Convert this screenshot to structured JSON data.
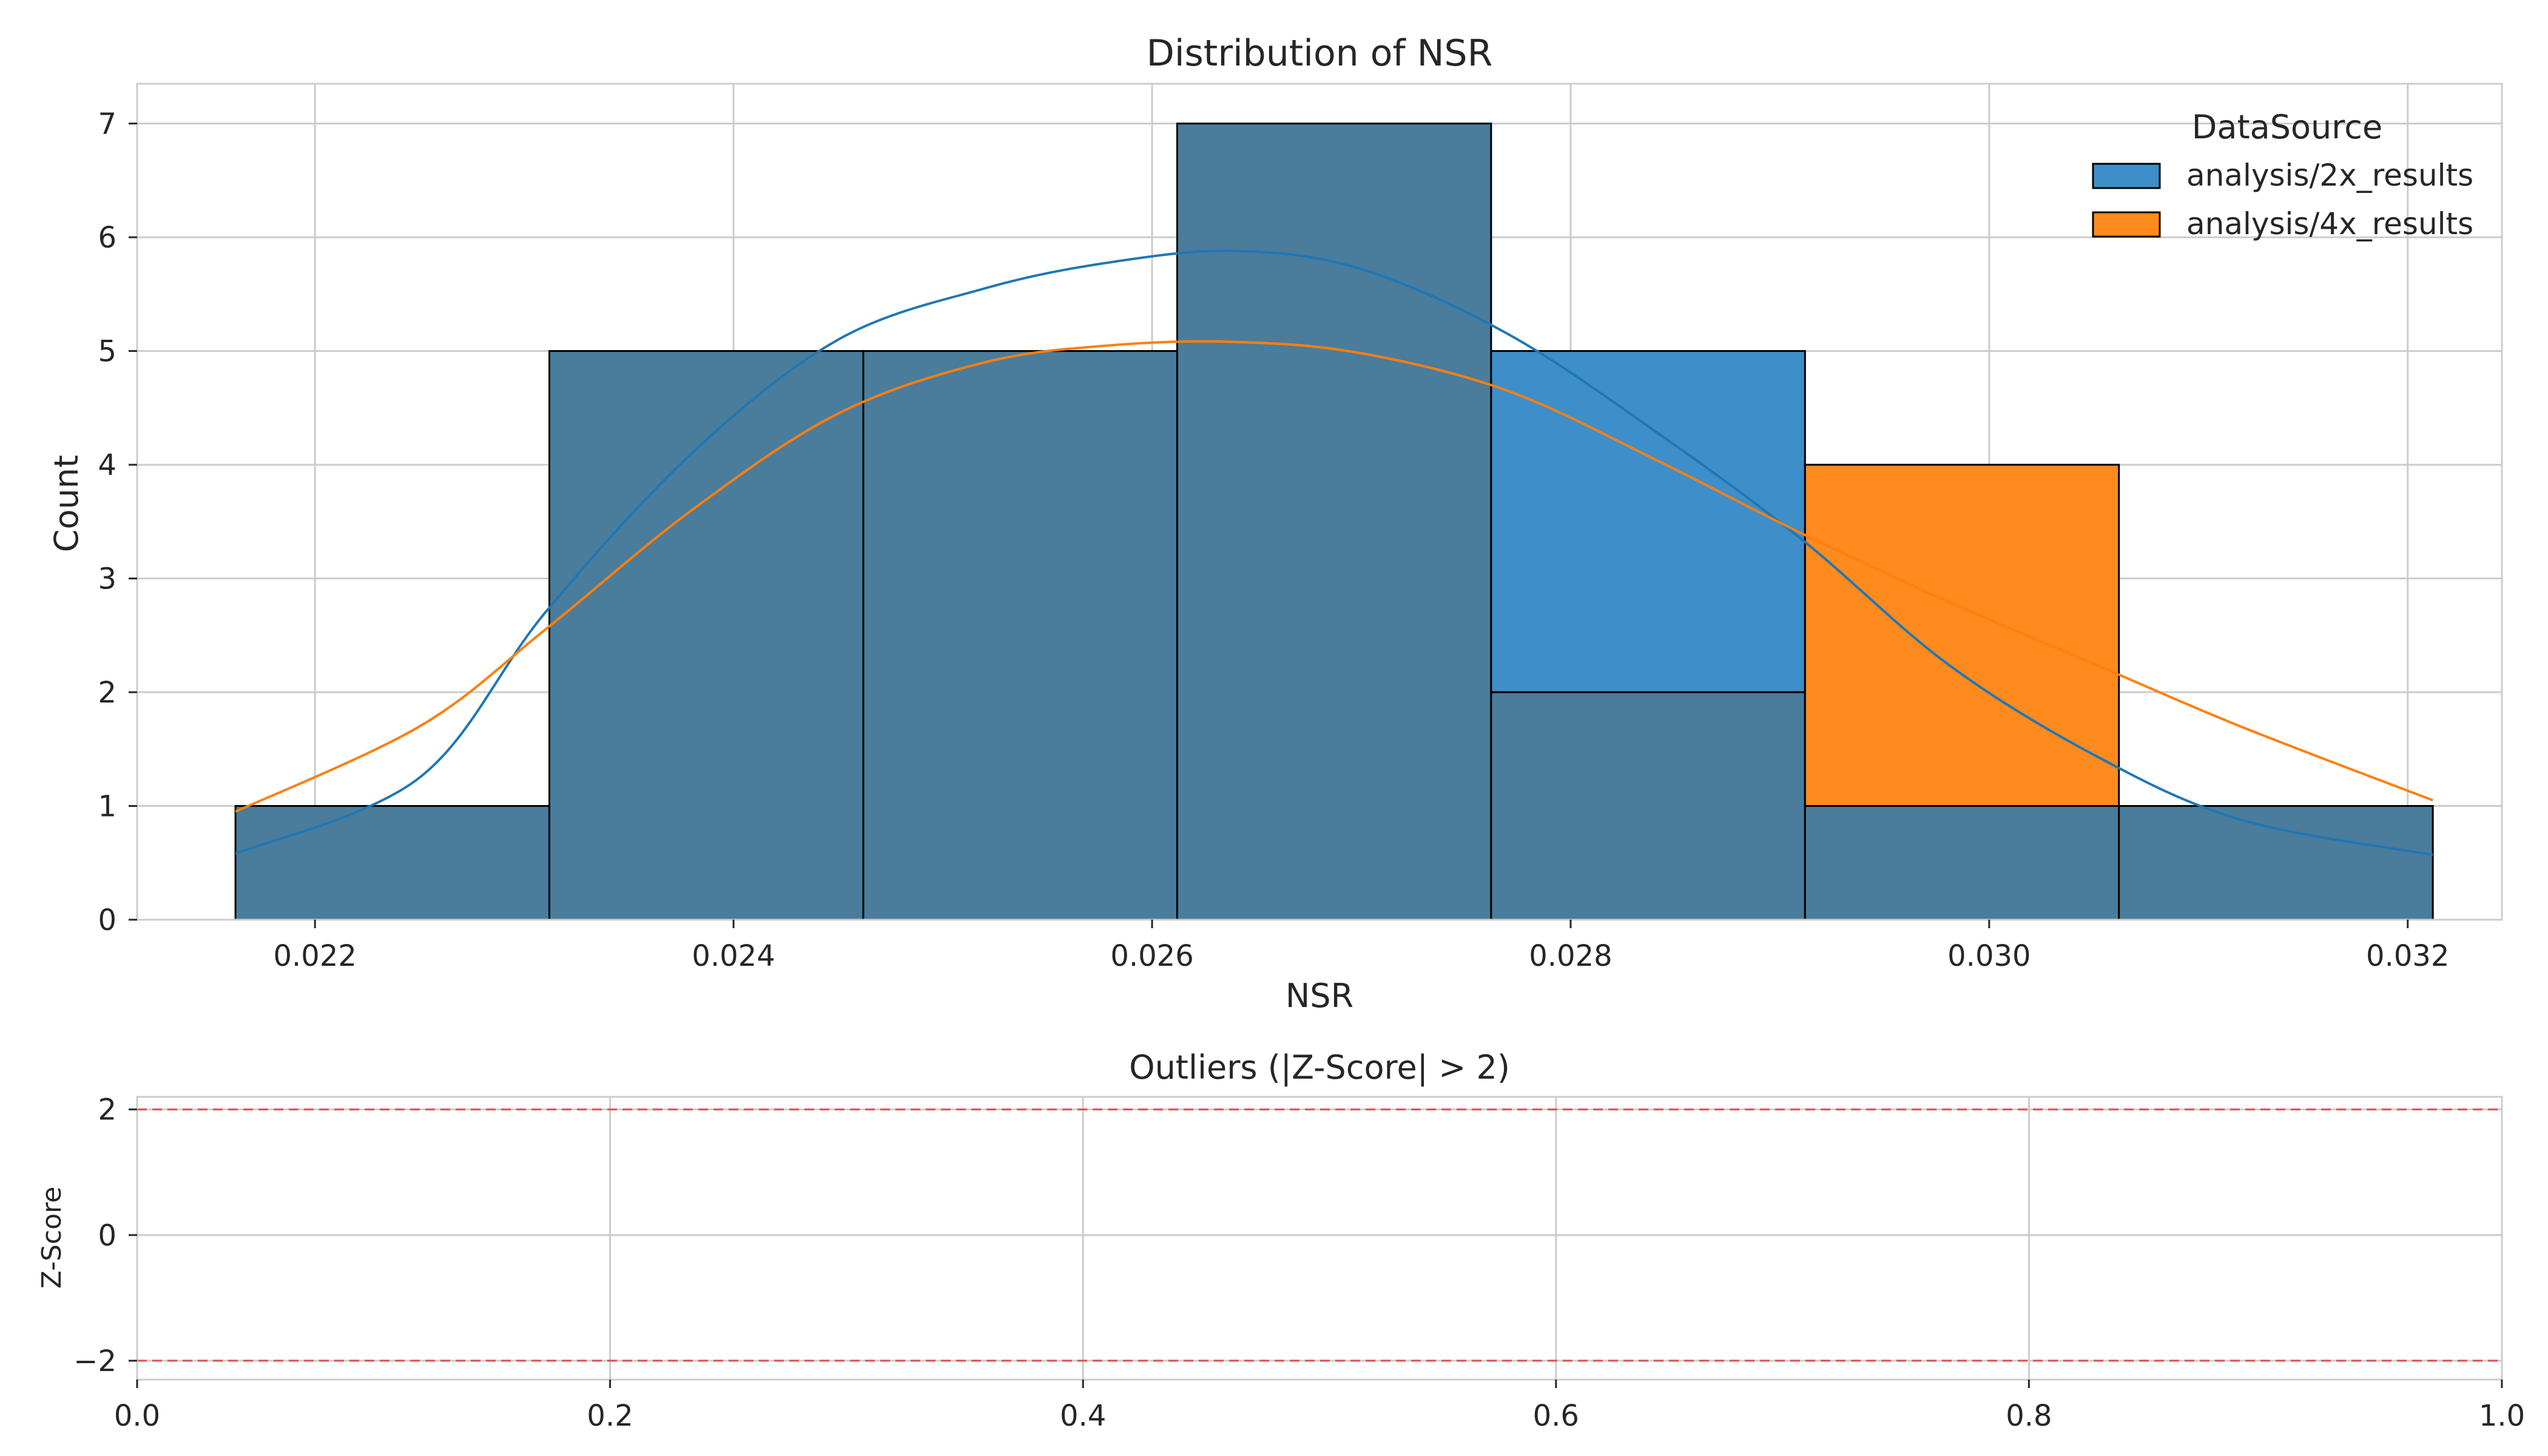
{
  "colors": {
    "series_2x": "#3d8ec9",
    "series_4x": "#ff8a1e",
    "overlap": "#4a7c9c",
    "kde_2x": "#1f77b4",
    "kde_4x": "#ff7f0e",
    "threshold": "#e05050",
    "grid": "#cccccc",
    "edge": "#000000"
  },
  "chart_data": [
    {
      "type": "bar",
      "title": "Distribution of NSR",
      "xlabel": "NSR",
      "ylabel": "Count",
      "xlim": [
        0.02115,
        0.03245
      ],
      "ylim": [
        0,
        7.35
      ],
      "xticks": [
        0.022,
        0.024,
        0.026,
        0.028,
        0.03,
        0.032
      ],
      "xtick_labels": [
        "0.022",
        "0.024",
        "0.026",
        "0.028",
        "0.030",
        "0.032"
      ],
      "yticks": [
        0,
        1,
        2,
        3,
        4,
        5,
        6,
        7
      ],
      "ytick_labels": [
        "0",
        "1",
        "2",
        "3",
        "4",
        "5",
        "6",
        "7"
      ],
      "bin_edges": [
        0.02162,
        0.02312,
        0.02462,
        0.02612,
        0.02762,
        0.02912,
        0.03062,
        0.03212
      ],
      "grid": true,
      "legend": {
        "title": "DataSource",
        "placement": "top-right"
      },
      "series": [
        {
          "name": "analysis/2x_results",
          "values": [
            1,
            5,
            5,
            7,
            5,
            1,
            1
          ],
          "kde": {
            "x": [
              0.02162,
              0.0225,
              0.0231,
              0.0238,
              0.0245,
              0.0252,
              0.0258,
              0.0264,
              0.027,
              0.0277,
              0.0284,
              0.0291,
              0.0298,
              0.0305,
              0.0312,
              0.03212
            ],
            "y": [
              0.58,
              1.25,
              2.7,
              4.1,
              5.1,
              5.55,
              5.78,
              5.88,
              5.72,
              5.15,
              4.3,
              3.35,
              2.25,
              1.45,
              0.88,
              0.57
            ]
          }
        },
        {
          "name": "analysis/4x_results",
          "values": [
            1,
            5,
            5,
            7,
            2,
            4,
            1
          ],
          "kde": {
            "x": [
              0.02162,
              0.0225,
              0.0231,
              0.0238,
              0.0245,
              0.0252,
              0.0258,
              0.0264,
              0.027,
              0.0277,
              0.0284,
              0.0291,
              0.0298,
              0.0305,
              0.0312,
              0.03212
            ],
            "y": [
              0.95,
              1.7,
              2.55,
              3.6,
              4.45,
              4.9,
              5.05,
              5.08,
              4.98,
              4.65,
              4.05,
              3.4,
              2.8,
              2.25,
              1.7,
              1.05
            ]
          }
        }
      ]
    },
    {
      "type": "scatter",
      "title": "Outliers (|Z-Score| > 2)",
      "xlabel": "",
      "ylabel": "Z-Score",
      "xlim": [
        0,
        1
      ],
      "ylim": [
        -2.3,
        2.2
      ],
      "xticks": [
        0,
        0.2,
        0.4,
        0.6,
        0.8,
        1.0
      ],
      "xtick_labels": [
        "0.0",
        "0.2",
        "0.4",
        "0.6",
        "0.8",
        "1.0"
      ],
      "yticks": [
        -2,
        0,
        2
      ],
      "ytick_labels": [
        "−2",
        "0",
        "2"
      ],
      "grid": true,
      "threshold_lines": [
        2,
        -2
      ],
      "points": []
    }
  ]
}
